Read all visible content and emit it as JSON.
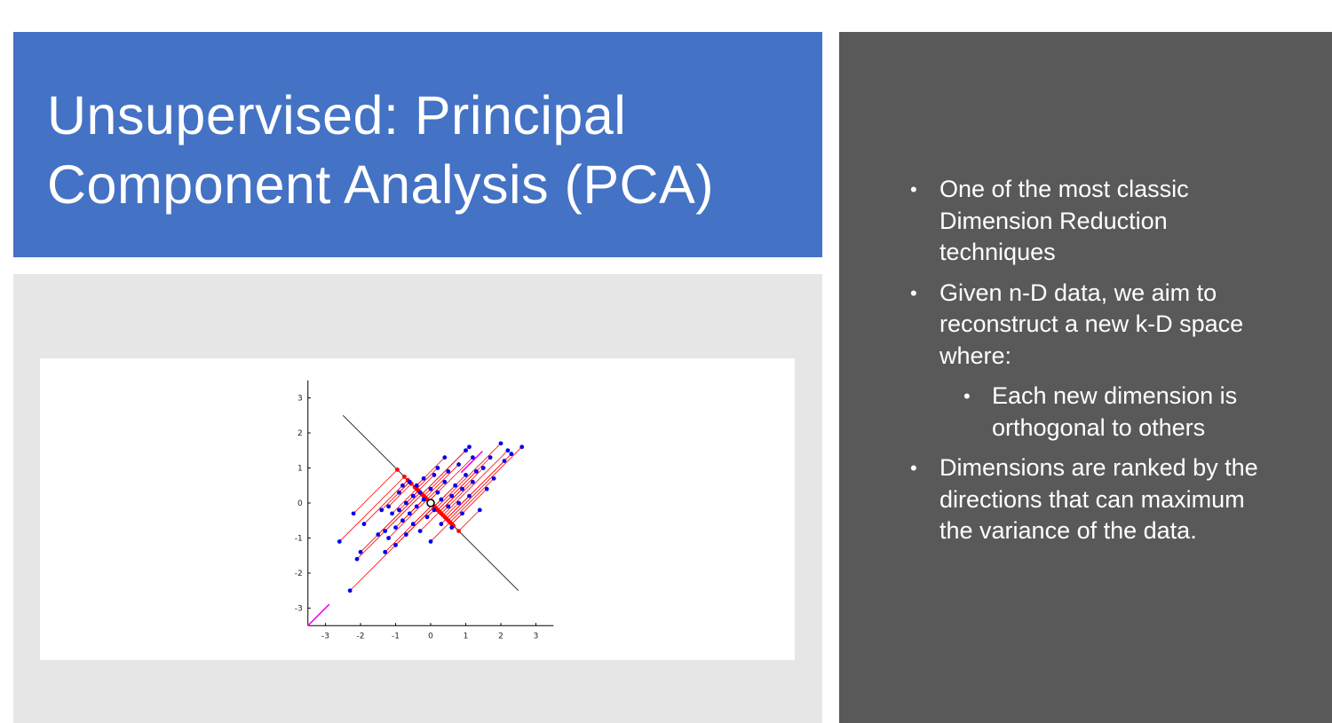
{
  "slide": {
    "title": "Unsupervised: Principal Component Analysis (PCA)",
    "bullets": [
      {
        "level": 1,
        "text": "One of the most classic Dimension Reduction techniques"
      },
      {
        "level": 1,
        "text": "Given n-D data, we aim to reconstruct a new k-D space where:"
      },
      {
        "level": 2,
        "text": "Each new dimension is orthogonal to others"
      },
      {
        "level": 1,
        "text": "Dimensions are ranked by the directions that can maximum the variance of the data."
      }
    ],
    "colors": {
      "title_background": "#4472c4",
      "side_background": "#595959",
      "image_background": "#e7e6e6",
      "points": "#0000ee",
      "projections": "#ff0000",
      "principal_axis": "#ee00ee",
      "second_axis": "#333333"
    }
  },
  "chart_data": {
    "type": "scatter",
    "xlim": [
      -3.5,
      3.5
    ],
    "ylim": [
      -3.5,
      3.5
    ],
    "x_ticks": [
      "-3",
      "-2",
      "-1",
      "0",
      "1",
      "2",
      "3"
    ],
    "y_ticks": [
      "3",
      "2",
      "1",
      "0",
      "-1",
      "-2",
      "-3"
    ],
    "mean": [
      0,
      0
    ],
    "principal_axis_direction": [
      1,
      1
    ],
    "second_axis_direction": [
      1,
      -1
    ],
    "points": [
      [
        -2.6,
        -1.1
      ],
      [
        -2.3,
        -2.5
      ],
      [
        -2.2,
        -0.3
      ],
      [
        -2.1,
        -1.6
      ],
      [
        -2.0,
        -1.4
      ],
      [
        -1.9,
        -0.6
      ],
      [
        -1.5,
        -0.9
      ],
      [
        -1.3,
        -0.8
      ],
      [
        -1.3,
        -1.4
      ],
      [
        -1.2,
        -0.1
      ],
      [
        -1.2,
        -1.0
      ],
      [
        -1.1,
        -0.3
      ],
      [
        -1.0,
        -0.7
      ],
      [
        -1.0,
        -1.2
      ],
      [
        -0.9,
        -0.2
      ],
      [
        -0.9,
        0.3
      ],
      [
        -0.8,
        -0.5
      ],
      [
        -0.7,
        0.0
      ],
      [
        -0.7,
        -0.9
      ],
      [
        -0.6,
        0.6
      ],
      [
        -0.6,
        -0.3
      ],
      [
        -0.5,
        0.2
      ],
      [
        -0.5,
        -0.6
      ],
      [
        -0.4,
        0.5
      ],
      [
        -0.4,
        -0.1
      ],
      [
        -0.3,
        0.3
      ],
      [
        -0.3,
        -0.8
      ],
      [
        -0.2,
        0.1
      ],
      [
        -0.2,
        0.7
      ],
      [
        -0.1,
        -0.4
      ],
      [
        0.0,
        0.4
      ],
      [
        0.0,
        -1.1
      ],
      [
        0.1,
        0.8
      ],
      [
        0.1,
        -0.2
      ],
      [
        0.2,
        0.3
      ],
      [
        0.2,
        1.0
      ],
      [
        0.3,
        -0.6
      ],
      [
        0.3,
        0.1
      ],
      [
        0.4,
        0.6
      ],
      [
        0.5,
        -0.1
      ],
      [
        0.5,
        0.9
      ],
      [
        0.6,
        0.2
      ],
      [
        0.6,
        -0.7
      ],
      [
        0.7,
        0.5
      ],
      [
        0.8,
        0.0
      ],
      [
        0.8,
        1.1
      ],
      [
        0.9,
        0.4
      ],
      [
        0.9,
        -0.3
      ],
      [
        1.0,
        0.8
      ],
      [
        1.0,
        1.5
      ],
      [
        1.1,
        0.2
      ],
      [
        1.2,
        0.6
      ],
      [
        1.2,
        1.3
      ],
      [
        1.3,
        0.9
      ],
      [
        1.4,
        -0.2
      ],
      [
        1.5,
        1.0
      ],
      [
        1.6,
        0.4
      ],
      [
        1.7,
        1.3
      ],
      [
        1.8,
        0.7
      ],
      [
        2.0,
        1.7
      ],
      [
        2.1,
        1.2
      ],
      [
        2.2,
        1.5
      ],
      [
        2.3,
        1.4
      ],
      [
        2.6,
        1.6
      ],
      [
        1.1,
        1.6
      ],
      [
        -1.4,
        -0.2
      ],
      [
        0.4,
        1.3
      ],
      [
        -0.8,
        0.5
      ]
    ]
  }
}
